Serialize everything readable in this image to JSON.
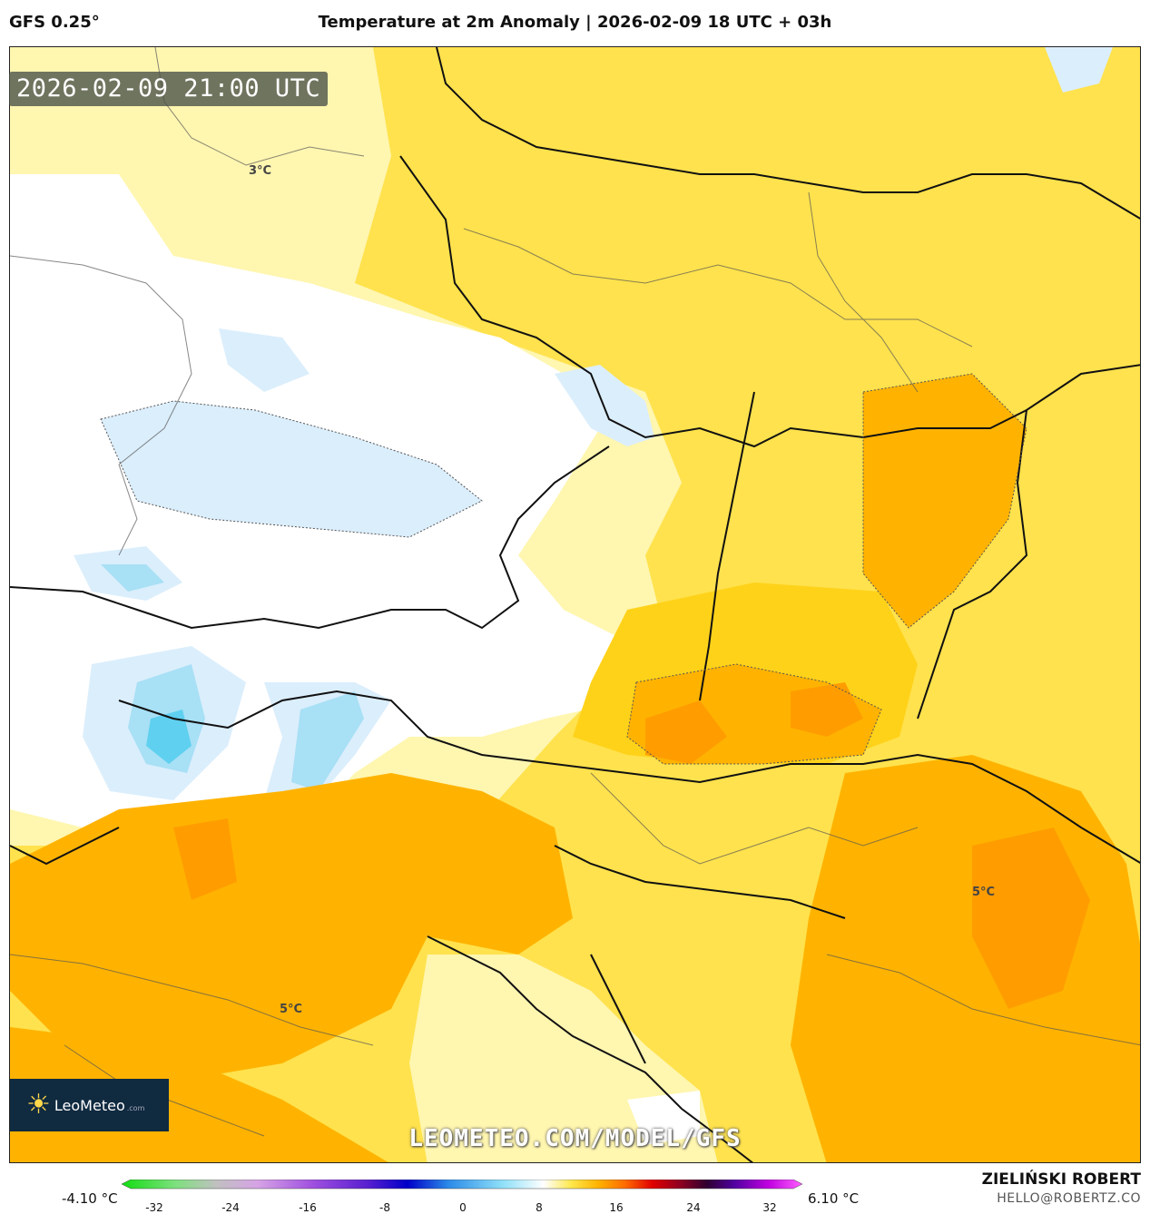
{
  "header": {
    "model": "GFS 0.25°",
    "title": "Temperature at 2m Anomaly | 2026-02-09 18 UTC + 03h"
  },
  "map": {
    "valid_time": "2026-02-09 21:00 UTC",
    "watermark_url": "LEOMETEO.COM/MODEL/GFS",
    "contour_labels": [
      "3°C",
      "5°C",
      "5°C"
    ],
    "colors": {
      "cold_light": "#dbeefc",
      "cold_mid": "#a8e0f5",
      "cold_strong": "#5fd0f0",
      "neutral": "#ffffff",
      "warm_1": "#fff6b0",
      "warm_2": "#ffe24d",
      "warm_3": "#ffd21a",
      "warm_4": "#ffb300",
      "warm_5": "#ff9d00"
    }
  },
  "logo": {
    "brand": "LeoMeteo",
    "suffix": ".com"
  },
  "colorbar": {
    "min_label": "-4.10 °C",
    "max_label": "6.10 °C",
    "ticks": [
      "-32",
      "-24",
      "-16",
      "-8",
      "0",
      "8",
      "16",
      "24",
      "32"
    ]
  },
  "credits": {
    "author": "ZIELIŃSKI ROBERT",
    "email": "HELLO@ROBERTZ.CO"
  }
}
